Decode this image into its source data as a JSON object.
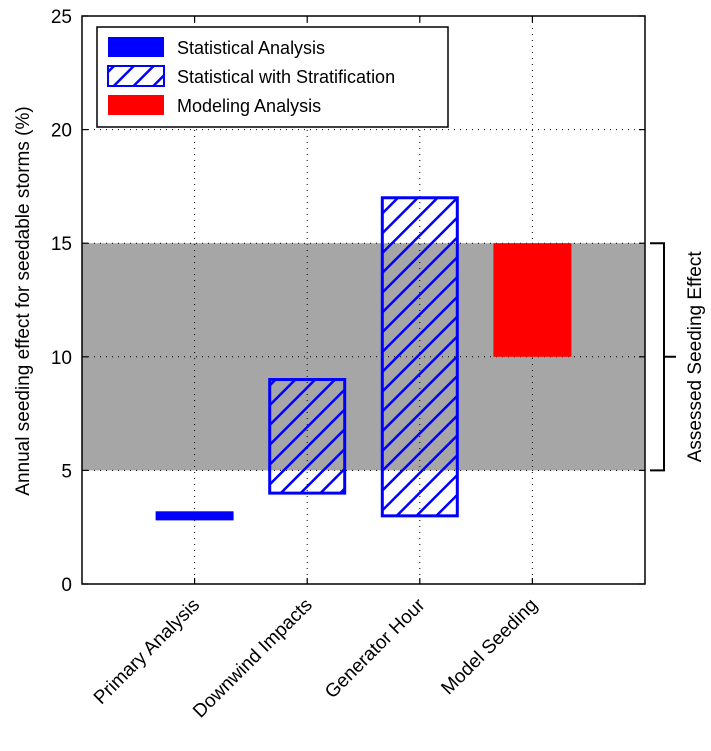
{
  "chart_data": {
    "type": "bar",
    "title": "",
    "xlabel": "",
    "ylabel": "Annual seeding effect for seedable storms (%)",
    "ylim": [
      0,
      25
    ],
    "yticks": [
      0,
      5,
      10,
      15,
      20,
      25
    ],
    "grid": true,
    "legend_position": "top-left",
    "categories": [
      "Primary Analysis",
      "Downwind Impacts",
      "Generator Hour",
      "Model Seeding"
    ],
    "series": [
      {
        "name": "Statistical Analysis",
        "style": "solid",
        "color": "#0000ff",
        "ranges": [
          [
            2.8,
            3.2
          ],
          null,
          null,
          null
        ]
      },
      {
        "name": "Statistical with Stratification",
        "style": "hatched",
        "color": "#0000ff",
        "ranges": [
          null,
          [
            4,
            9
          ],
          [
            3,
            17
          ],
          null
        ]
      },
      {
        "name": "Modeling Analysis",
        "style": "solid",
        "color": "#ff0000",
        "ranges": [
          null,
          null,
          null,
          [
            10,
            15
          ]
        ]
      }
    ],
    "shaded_band": {
      "from": 5,
      "to": 15,
      "color": "#a6a6a6"
    },
    "bracket": {
      "from": 5,
      "to": 15,
      "label": "Assessed Seeding Effect"
    }
  }
}
